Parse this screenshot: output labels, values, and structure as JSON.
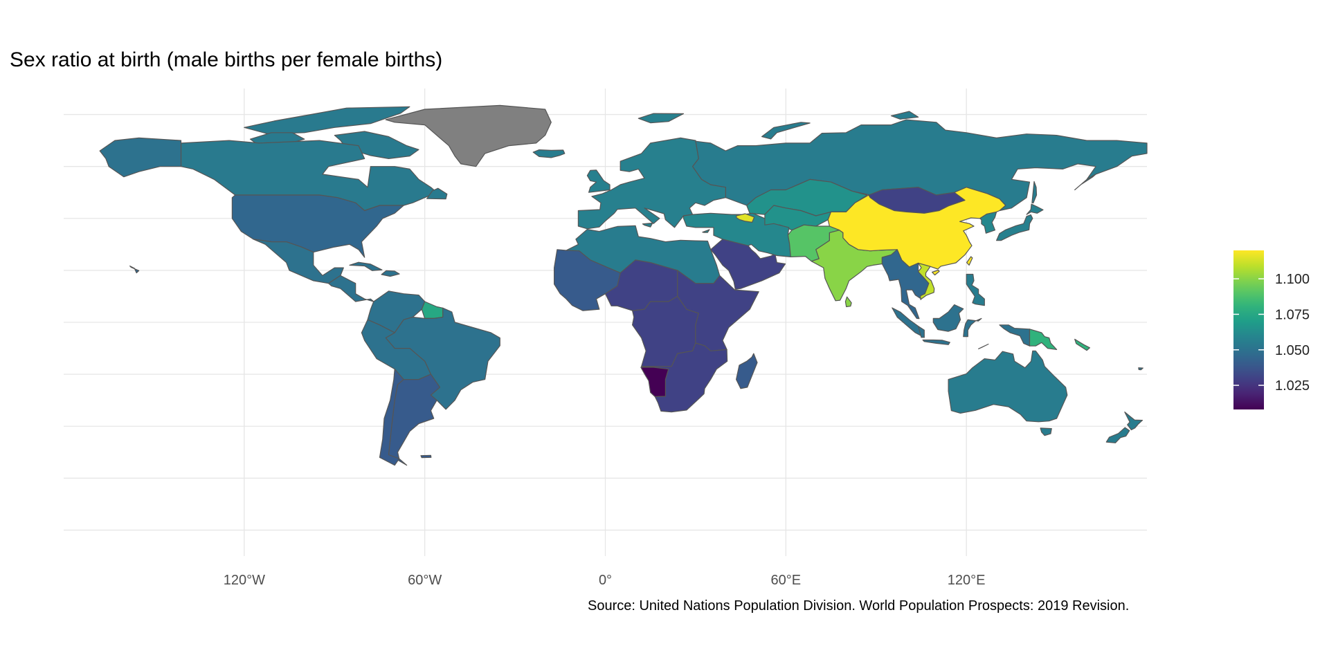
{
  "title": "Sex ratio at birth (male births per female births)",
  "caption": "Source: United Nations Population Division. World Population Prospects: 2019 Revision.",
  "colors": {
    "background": "#ffffff",
    "grid": "#e6e6e6",
    "border": "#555555",
    "no_data": "#808080",
    "palette": "viridis"
  },
  "chart_data": {
    "type": "choropleth",
    "projection": "equirectangular",
    "x_axis": {
      "ticks": [
        -120,
        -60,
        0,
        60,
        120
      ],
      "tick_labels": [
        "120°W",
        "60°W",
        "0°",
        "60°E",
        "120°E"
      ],
      "range": [
        -180,
        180
      ]
    },
    "y_range": [
      -90,
      90
    ],
    "grid": true,
    "legend": {
      "position": "right",
      "range": [
        1.008,
        1.12
      ],
      "ticks": [
        1.025,
        1.05,
        1.075,
        1.1
      ],
      "tick_labels": [
        "1.025",
        "1.050",
        "1.075",
        "1.100"
      ]
    },
    "regions": [
      {
        "name": "Canada",
        "value": 1.054
      },
      {
        "name": "Alaska (United States)",
        "value": 1.05
      },
      {
        "name": "United States",
        "value": 1.045
      },
      {
        "name": "Mexico",
        "value": 1.05
      },
      {
        "name": "Central America",
        "value": 1.05
      },
      {
        "name": "Greenland",
        "value": null
      },
      {
        "name": "Colombia / Venezuela",
        "value": 1.05
      },
      {
        "name": "Suriname / Guyana",
        "value": 1.075
      },
      {
        "name": "Brazil",
        "value": 1.05
      },
      {
        "name": "Peru / Bolivia",
        "value": 1.05
      },
      {
        "name": "Argentina",
        "value": 1.04
      },
      {
        "name": "Chile",
        "value": 1.04
      },
      {
        "name": "Europe",
        "value": 1.057
      },
      {
        "name": "Iceland",
        "value": 1.055
      },
      {
        "name": "Russia",
        "value": 1.055
      },
      {
        "name": "Kazakhstan",
        "value": 1.065
      },
      {
        "name": "North Africa",
        "value": 1.055
      },
      {
        "name": "West Africa",
        "value": 1.04
      },
      {
        "name": "Sahel",
        "value": 1.03
      },
      {
        "name": "Central Africa",
        "value": 1.03
      },
      {
        "name": "East Africa",
        "value": 1.03
      },
      {
        "name": "Namibia",
        "value": 1.008
      },
      {
        "name": "Southern Africa",
        "value": 1.03
      },
      {
        "name": "Madagascar",
        "value": 1.04
      },
      {
        "name": "Arabian Peninsula",
        "value": 1.03
      },
      {
        "name": "Turkey / Iran",
        "value": 1.06
      },
      {
        "name": "Pakistan / Afghanistan",
        "value": 1.09
      },
      {
        "name": "India",
        "value": 1.1
      },
      {
        "name": "Mongolia",
        "value": 1.03
      },
      {
        "name": "China",
        "value": 1.12
      },
      {
        "name": "Vietnam",
        "value": 1.11
      },
      {
        "name": "Southeast Asia",
        "value": 1.045
      },
      {
        "name": "Japan",
        "value": 1.057
      },
      {
        "name": "Korea",
        "value": 1.06
      },
      {
        "name": "Indonesia",
        "value": 1.05
      },
      {
        "name": "Philippines",
        "value": 1.055
      },
      {
        "name": "Papua New Guinea",
        "value": 1.08
      },
      {
        "name": "Australia",
        "value": 1.055
      },
      {
        "name": "New Zealand",
        "value": 1.055
      },
      {
        "name": "Armenia / Azerbaijan",
        "value": 1.115
      }
    ]
  }
}
